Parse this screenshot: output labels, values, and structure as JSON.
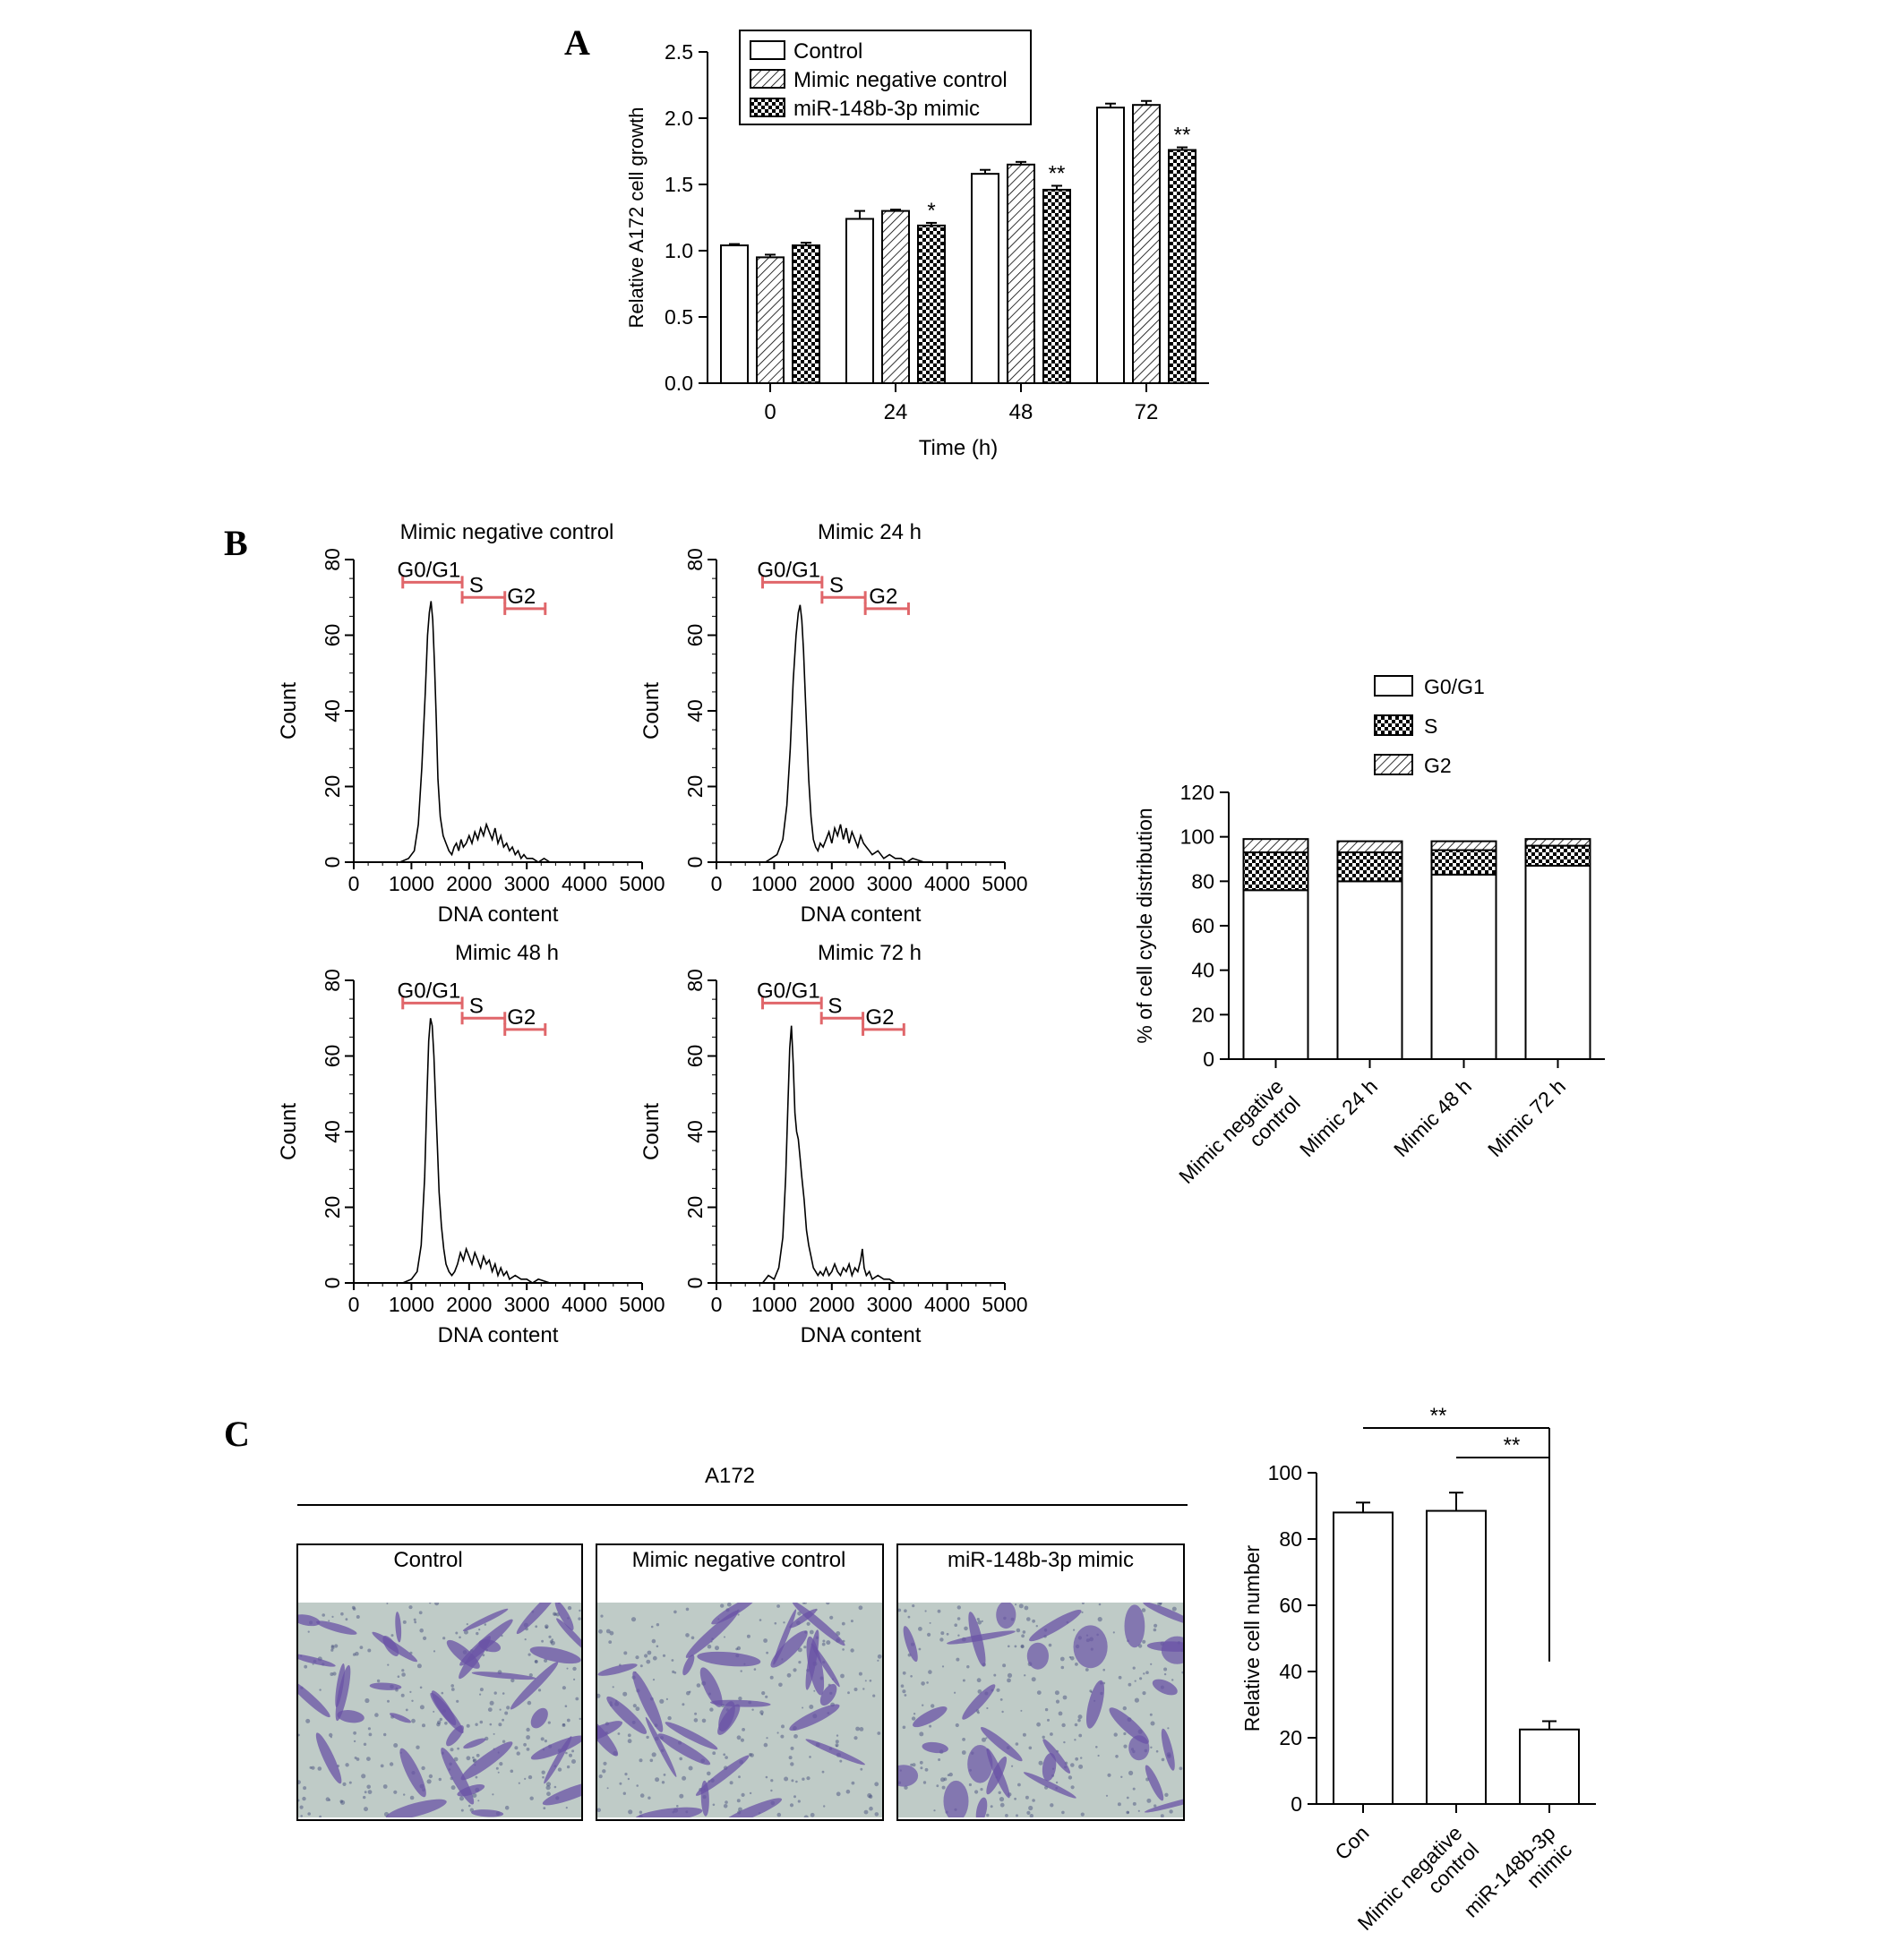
{
  "panels": {
    "a": "A",
    "b": "B",
    "c": "C"
  },
  "chart_data": [
    {
      "id": "growth",
      "type": "bar",
      "ylabel": "Relative  A172  cell growth",
      "xlabel": "Time (h)",
      "categories": [
        "0",
        "24",
        "48",
        "72"
      ],
      "ylim": [
        0,
        2.5
      ],
      "yticks": [
        "0.0",
        "0.5",
        "1.0",
        "1.5",
        "2.0",
        "2.5"
      ],
      "legend_position": "top-left",
      "series": [
        {
          "name": "Control",
          "pattern": "plain",
          "values": [
            1.04,
            1.24,
            1.58,
            2.08
          ],
          "errors": [
            0.01,
            0.06,
            0.03,
            0.03
          ]
        },
        {
          "name": "Mimic negative control",
          "pattern": "hatch",
          "values": [
            0.95,
            1.3,
            1.65,
            2.1
          ],
          "errors": [
            0.02,
            0.01,
            0.02,
            0.03
          ]
        },
        {
          "name": "miR-148b-3p mimic",
          "pattern": "check",
          "values": [
            1.04,
            1.19,
            1.46,
            1.76
          ],
          "errors": [
            0.02,
            0.02,
            0.03,
            0.02
          ]
        }
      ],
      "annotations": [
        "",
        "*",
        "**",
        "**"
      ]
    },
    {
      "id": "hist-nc",
      "type": "line",
      "title": "Mimic negative control",
      "xlabel": "DNA content",
      "ylabel": "Count",
      "xlim": [
        0,
        5000
      ],
      "ylim": [
        0,
        80
      ],
      "xticks": [
        "0",
        "1000",
        "2000",
        "3000",
        "4000",
        "5000"
      ],
      "yticks": [
        "0",
        "20",
        "40",
        "60",
        "80"
      ],
      "gates": [
        {
          "label": "G0/G1",
          "start": 850,
          "end": 1880,
          "level": 74
        },
        {
          "label": "S",
          "start": 1880,
          "end": 2620,
          "level": 70
        },
        {
          "label": "G2",
          "start": 2620,
          "end": 3320,
          "level": 67
        }
      ],
      "x": [
        800,
        950,
        1050,
        1120,
        1180,
        1240,
        1280,
        1310,
        1340,
        1370,
        1400,
        1430,
        1460,
        1500,
        1550,
        1600,
        1650,
        1700,
        1740,
        1780,
        1820,
        1860,
        1900,
        1950,
        2000,
        2050,
        2100,
        2150,
        2200,
        2250,
        2300,
        2350,
        2400,
        2450,
        2500,
        2550,
        2600,
        2650,
        2700,
        2750,
        2800,
        2850,
        2900,
        2950,
        3000,
        3100,
        3200,
        3300,
        3400,
        3600
      ],
      "y": [
        0,
        1,
        3,
        10,
        25,
        45,
        60,
        66,
        69,
        64,
        52,
        38,
        22,
        12,
        7,
        5,
        3,
        2,
        4,
        5,
        3,
        6,
        4,
        5,
        7,
        5,
        8,
        6,
        9,
        7,
        10,
        8,
        6,
        9,
        5,
        7,
        4,
        5,
        3,
        4,
        2,
        3,
        1,
        2,
        1,
        1,
        0,
        1,
        0,
        0
      ]
    },
    {
      "id": "hist-24",
      "type": "line",
      "title": "Mimic 24 h",
      "xlabel": "DNA content",
      "ylabel": "Count",
      "xlim": [
        0,
        5000
      ],
      "ylim": [
        0,
        80
      ],
      "xticks": [
        "0",
        "1000",
        "2000",
        "3000",
        "4000",
        "5000"
      ],
      "yticks": [
        "0",
        "20",
        "40",
        "60",
        "80"
      ],
      "gates": [
        {
          "label": "G0/G1",
          "start": 800,
          "end": 1830,
          "level": 74
        },
        {
          "label": "S",
          "start": 1830,
          "end": 2580,
          "level": 70
        },
        {
          "label": "G2",
          "start": 2580,
          "end": 3330,
          "level": 67
        }
      ],
      "x": [
        850,
        950,
        1050,
        1150,
        1220,
        1280,
        1330,
        1380,
        1420,
        1450,
        1480,
        1510,
        1540,
        1570,
        1600,
        1640,
        1680,
        1720,
        1760,
        1800,
        1850,
        1900,
        1950,
        2000,
        2050,
        2100,
        2150,
        2200,
        2250,
        2300,
        2350,
        2400,
        2450,
        2500,
        2550,
        2600,
        2650,
        2700,
        2800,
        2900,
        3000,
        3100,
        3200,
        3300,
        3400,
        3600,
        3800
      ],
      "y": [
        0,
        1,
        2,
        6,
        15,
        30,
        48,
        60,
        66,
        68,
        64,
        56,
        44,
        33,
        22,
        12,
        6,
        4,
        3,
        5,
        4,
        6,
        8,
        5,
        9,
        7,
        10,
        6,
        9,
        5,
        8,
        6,
        4,
        7,
        5,
        4,
        3,
        2,
        3,
        1,
        2,
        1,
        1,
        0,
        1,
        0,
        0
      ]
    },
    {
      "id": "hist-48",
      "type": "line",
      "title": "Mimic 48 h",
      "xlabel": "DNA content",
      "ylabel": "Count",
      "xlim": [
        0,
        5000
      ],
      "ylim": [
        0,
        80
      ],
      "xticks": [
        "0",
        "1000",
        "2000",
        "3000",
        "4000",
        "5000"
      ],
      "yticks": [
        "0",
        "20",
        "40",
        "60",
        "80"
      ],
      "gates": [
        {
          "label": "G0/G1",
          "start": 850,
          "end": 1880,
          "level": 74
        },
        {
          "label": "S",
          "start": 1880,
          "end": 2620,
          "level": 70
        },
        {
          "label": "G2",
          "start": 2620,
          "end": 3320,
          "level": 67
        }
      ],
      "x": [
        850,
        1000,
        1100,
        1170,
        1230,
        1270,
        1300,
        1330,
        1360,
        1390,
        1420,
        1450,
        1480,
        1520,
        1560,
        1600,
        1650,
        1700,
        1750,
        1800,
        1850,
        1900,
        1950,
        2000,
        2050,
        2100,
        2150,
        2200,
        2250,
        2300,
        2350,
        2400,
        2450,
        2500,
        2550,
        2600,
        2650,
        2700,
        2800,
        2900,
        3000,
        3100,
        3200,
        3400
      ],
      "y": [
        0,
        1,
        3,
        10,
        28,
        50,
        64,
        70,
        68,
        60,
        48,
        36,
        24,
        15,
        9,
        5,
        3,
        2,
        3,
        5,
        8,
        6,
        9,
        7,
        5,
        8,
        6,
        4,
        7,
        5,
        6,
        3,
        5,
        2,
        4,
        2,
        3,
        1,
        2,
        1,
        1,
        0,
        1,
        0
      ]
    },
    {
      "id": "hist-72",
      "type": "line",
      "title": "Mimic 72 h",
      "xlabel": "DNA content",
      "ylabel": "Count",
      "xlim": [
        0,
        5000
      ],
      "ylim": [
        0,
        80
      ],
      "xticks": [
        "0",
        "1000",
        "2000",
        "3000",
        "4000",
        "5000"
      ],
      "yticks": [
        "0",
        "20",
        "40",
        "60",
        "80"
      ],
      "gates": [
        {
          "label": "G0/G1",
          "start": 800,
          "end": 1820,
          "level": 74
        },
        {
          "label": "S",
          "start": 1820,
          "end": 2540,
          "level": 70
        },
        {
          "label": "G2",
          "start": 2540,
          "end": 3250,
          "level": 67
        }
      ],
      "x": [
        800,
        900,
        1000,
        1080,
        1150,
        1200,
        1240,
        1270,
        1300,
        1330,
        1360,
        1390,
        1420,
        1450,
        1480,
        1520,
        1560,
        1600,
        1640,
        1680,
        1720,
        1760,
        1800,
        1850,
        1900,
        1950,
        2000,
        2050,
        2100,
        2150,
        2200,
        2250,
        2300,
        2350,
        2400,
        2450,
        2500,
        2530,
        2560,
        2600,
        2650,
        2700,
        2800,
        2900,
        3000,
        3100,
        3300
      ],
      "y": [
        0,
        2,
        1,
        4,
        12,
        28,
        48,
        62,
        68,
        58,
        45,
        40,
        38,
        33,
        28,
        22,
        14,
        10,
        7,
        4,
        3,
        2,
        3,
        2,
        4,
        2,
        3,
        5,
        3,
        2,
        4,
        3,
        5,
        2,
        4,
        3,
        6,
        9,
        4,
        2,
        3,
        1,
        2,
        1,
        1,
        0,
        0
      ]
    },
    {
      "id": "cellcycle",
      "type": "bar",
      "stacked": true,
      "ylabel": "% of cell cycle distribution",
      "categories": [
        "Mimic negative\ncontrol",
        "Mimic 24 h",
        "Mimic 48 h",
        "Mimic 72 h"
      ],
      "ylim": [
        0,
        120
      ],
      "yticks": [
        "0",
        "20",
        "40",
        "60",
        "80",
        "100",
        "120"
      ],
      "legend_position": "top-right",
      "series": [
        {
          "name": "G0/G1",
          "pattern": "plain",
          "values": [
            76,
            80,
            83,
            87
          ]
        },
        {
          "name": "S",
          "pattern": "check",
          "values": [
            17,
            13,
            11,
            9
          ]
        },
        {
          "name": "G2",
          "pattern": "hatch",
          "values": [
            6,
            5,
            4,
            3
          ]
        }
      ]
    },
    {
      "id": "migration",
      "type": "bar",
      "ylabel": "Relative cell number",
      "categories": [
        "Con",
        "Mimic negative\ncontrol",
        "miR-148b-3p\nmimic"
      ],
      "ylim": [
        0,
        100
      ],
      "yticks": [
        "0",
        "20",
        "40",
        "60",
        "80",
        "100"
      ],
      "values": [
        88,
        88.5,
        22.5
      ],
      "errors": [
        3,
        5.5,
        2.5
      ],
      "significance": [
        {
          "from": 0,
          "to": 2,
          "label": "**"
        },
        {
          "from": 1,
          "to": 2,
          "label": "**"
        }
      ]
    }
  ],
  "micrographs": {
    "header": "A172",
    "labels": [
      "Control",
      "Mimic negative control",
      "miR-148b-3p mimic"
    ],
    "colors": {
      "background": "#bfcbc7",
      "cell": "#6a53a6",
      "dot": "#3e4878"
    }
  }
}
